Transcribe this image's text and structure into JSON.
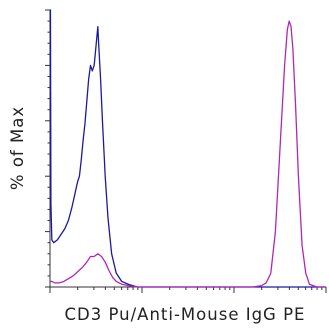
{
  "chart_data": {
    "type": "line",
    "title": "",
    "xlabel": "CD3 Pu/Anti-Mouse IgG PE",
    "ylabel": "% of Max",
    "x_scale": "biexponential",
    "xlim": [
      0,
      100000
    ],
    "ylim": [
      0,
      100
    ],
    "grid": false,
    "legend": "none",
    "x_tick_labels": [],
    "y_tick_labels": [],
    "series": [
      {
        "color": "#1a1aa0",
        "points": [
          [
            0.0,
            100
          ],
          [
            0.005,
            100
          ],
          [
            0.01,
            30
          ],
          [
            0.02,
            17
          ],
          [
            0.04,
            16
          ],
          [
            0.08,
            17
          ],
          [
            0.12,
            19
          ],
          [
            0.16,
            21
          ],
          [
            0.2,
            24
          ],
          [
            0.24,
            29
          ],
          [
            0.28,
            35
          ],
          [
            0.3,
            38
          ],
          [
            0.32,
            40
          ],
          [
            0.34,
            46
          ],
          [
            0.36,
            53
          ],
          [
            0.38,
            59
          ],
          [
            0.4,
            67
          ],
          [
            0.42,
            75
          ],
          [
            0.44,
            80
          ],
          [
            0.46,
            78
          ],
          [
            0.48,
            80
          ],
          [
            0.5,
            87
          ],
          [
            0.52,
            94
          ],
          [
            0.53,
            87
          ],
          [
            0.55,
            75
          ],
          [
            0.57,
            60
          ],
          [
            0.6,
            40
          ],
          [
            0.63,
            25
          ],
          [
            0.67,
            12
          ],
          [
            0.72,
            5
          ],
          [
            0.78,
            2
          ],
          [
            0.85,
            1
          ],
          [
            0.95,
            0
          ],
          [
            1.05,
            0
          ],
          [
            1.5,
            0
          ],
          [
            2.0,
            0
          ],
          [
            2.5,
            0
          ],
          [
            3.0,
            0
          ]
        ]
      },
      {
        "color": "#b026b8",
        "points": [
          [
            0.0,
            2
          ],
          [
            0.02,
            2
          ],
          [
            0.05,
            1.5
          ],
          [
            0.1,
            1.5
          ],
          [
            0.15,
            2
          ],
          [
            0.2,
            3
          ],
          [
            0.25,
            4
          ],
          [
            0.3,
            5.5
          ],
          [
            0.35,
            7
          ],
          [
            0.4,
            9
          ],
          [
            0.44,
            11
          ],
          [
            0.48,
            11
          ],
          [
            0.52,
            12
          ],
          [
            0.56,
            11
          ],
          [
            0.6,
            9
          ],
          [
            0.64,
            6
          ],
          [
            0.68,
            3.5
          ],
          [
            0.72,
            2
          ],
          [
            0.78,
            1
          ],
          [
            0.85,
            0.5
          ],
          [
            0.95,
            0
          ],
          [
            1.5,
            0
          ],
          [
            2.0,
            0
          ],
          [
            2.2,
            0
          ],
          [
            2.3,
            0.5
          ],
          [
            2.35,
            1.5
          ],
          [
            2.4,
            5
          ],
          [
            2.45,
            20
          ],
          [
            2.5,
            50
          ],
          [
            2.55,
            80
          ],
          [
            2.58,
            93
          ],
          [
            2.6,
            96
          ],
          [
            2.62,
            94
          ],
          [
            2.64,
            86
          ],
          [
            2.67,
            65
          ],
          [
            2.7,
            40
          ],
          [
            2.74,
            15
          ],
          [
            2.78,
            5
          ],
          [
            2.82,
            1
          ],
          [
            2.9,
            0
          ],
          [
            3.0,
            0
          ]
        ]
      }
    ]
  }
}
